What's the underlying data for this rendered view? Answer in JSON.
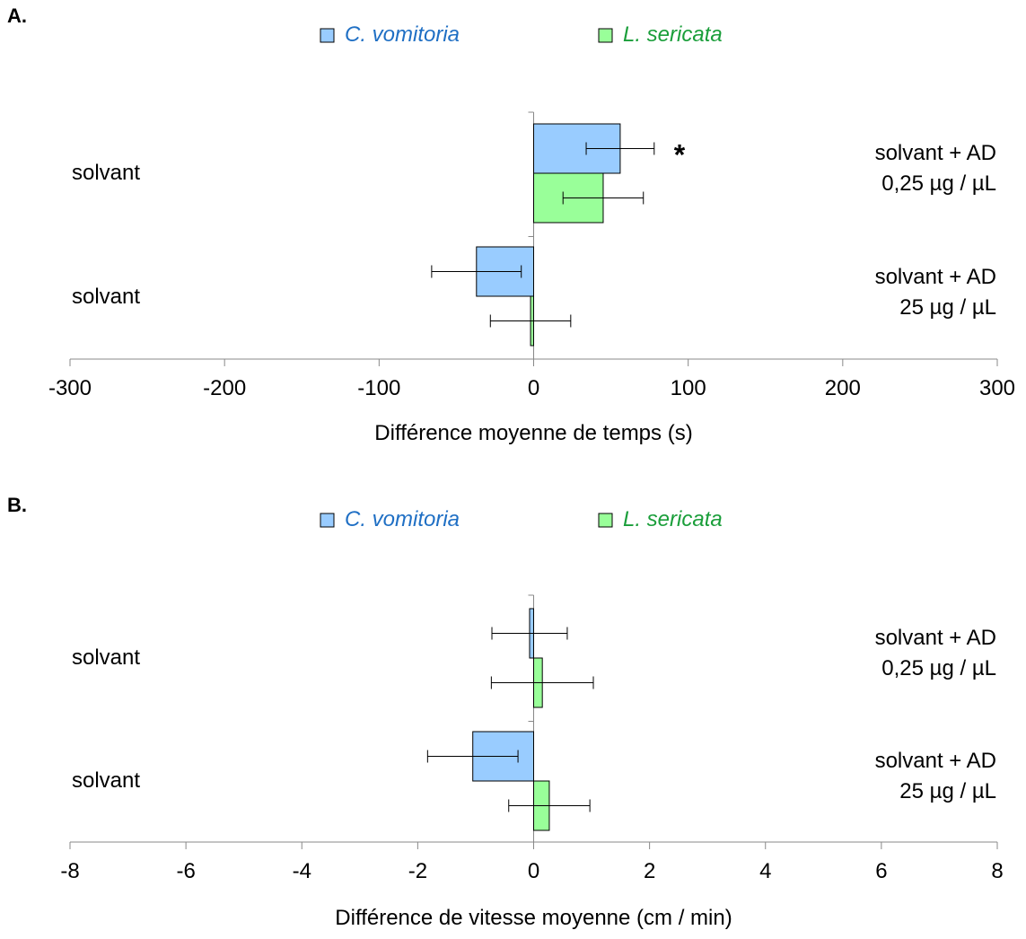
{
  "chart_data": [
    {
      "type": "bar",
      "orientation": "horizontal",
      "panel_label": "A.",
      "xlabel": "Différence moyenne de temps (s)",
      "xlim": [
        -300,
        300
      ],
      "xticks": [
        -300,
        -200,
        -100,
        0,
        100,
        200,
        300
      ],
      "legend": {
        "placement": "top-center"
      },
      "categories": [
        {
          "left": "solvant",
          "right": [
            "solvant + AD",
            "0,25 µg / µL"
          ]
        },
        {
          "left": "solvant",
          "right": [
            "solvant + AD",
            "25 µg / µL"
          ]
        }
      ],
      "series": [
        {
          "name": "C. vomitoria",
          "color": "#99ccff",
          "text_color": "#1f6fc4",
          "values": [
            56,
            -37
          ],
          "errors": [
            22,
            29
          ],
          "annotations": [
            "*",
            ""
          ]
        },
        {
          "name": "L. sericata",
          "color": "#99ff99",
          "text_color": "#1a9e3a",
          "values": [
            45,
            -2
          ],
          "errors": [
            26,
            26
          ],
          "annotations": [
            "",
            ""
          ]
        }
      ],
      "grid": false
    },
    {
      "type": "bar",
      "orientation": "horizontal",
      "panel_label": "B.",
      "xlabel": "Différence de vitesse moyenne (cm / min)",
      "xlim": [
        -8,
        8
      ],
      "xticks": [
        -8,
        -6,
        -4,
        -2,
        0,
        2,
        4,
        6,
        8
      ],
      "legend": {
        "placement": "top-center"
      },
      "categories": [
        {
          "left": "solvant",
          "right": [
            "solvant + AD",
            "0,25 µg / µL"
          ]
        },
        {
          "left": "solvant",
          "right": [
            "solvant + AD",
            "25 µg / µL"
          ]
        }
      ],
      "series": [
        {
          "name": "C. vomitoria",
          "color": "#99ccff",
          "text_color": "#1f6fc4",
          "values": [
            -0.07,
            -1.05
          ],
          "errors": [
            0.65,
            0.78
          ],
          "annotations": [
            "",
            ""
          ]
        },
        {
          "name": "L. sericata",
          "color": "#99ff99",
          "text_color": "#1a9e3a",
          "values": [
            0.15,
            0.27
          ],
          "errors": [
            0.88,
            0.7
          ],
          "annotations": [
            "",
            ""
          ]
        }
      ],
      "grid": false
    }
  ]
}
